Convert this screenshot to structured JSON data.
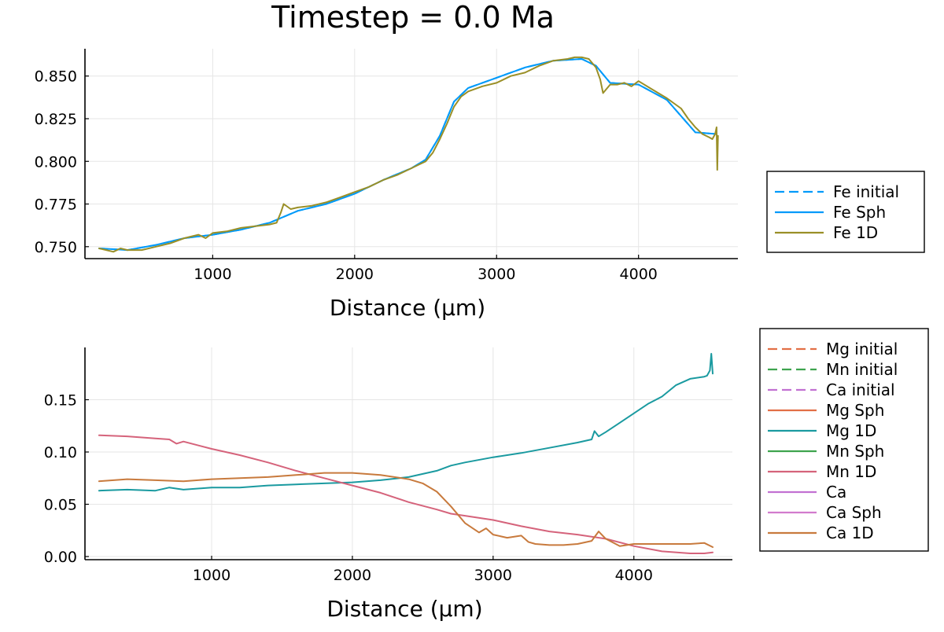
{
  "title": "Timestep = 0.0 Ma",
  "chart_data": [
    {
      "type": "line",
      "xlabel": "Distance (μm)",
      "ylabel": "",
      "xlim": [
        100,
        4700
      ],
      "ylim": [
        0.743,
        0.866
      ],
      "xticks": [
        1000,
        2000,
        3000,
        4000
      ],
      "xtick_labels": [
        "1000",
        "2000",
        "3000",
        "4000"
      ],
      "yticks": [
        0.75,
        0.775,
        0.8,
        0.825,
        0.85
      ],
      "ytick_labels": [
        "0.750",
        "0.775",
        "0.800",
        "0.825",
        "0.850"
      ],
      "grid": true,
      "legend_placement": "outside-right",
      "series": [
        {
          "name": "Fe initial",
          "color": "#009AFA",
          "dash": true,
          "x": [
            200,
            400,
            600,
            800,
            1000,
            1200,
            1400,
            1600,
            1800,
            2000,
            2200,
            2400,
            2500,
            2600,
            2700,
            2800,
            3000,
            3200,
            3400,
            3600,
            3700,
            3800,
            4000,
            4200,
            4400,
            4550
          ],
          "y": [
            0.749,
            0.748,
            0.751,
            0.755,
            0.757,
            0.76,
            0.764,
            0.771,
            0.775,
            0.781,
            0.789,
            0.796,
            0.801,
            0.815,
            0.835,
            0.843,
            0.849,
            0.855,
            0.859,
            0.86,
            0.856,
            0.846,
            0.845,
            0.836,
            0.817,
            0.816
          ]
        },
        {
          "name": "Fe Sph",
          "color": "#009AFA",
          "dash": false,
          "x": [
            200,
            400,
            600,
            800,
            1000,
            1200,
            1400,
            1600,
            1800,
            2000,
            2200,
            2400,
            2500,
            2600,
            2700,
            2800,
            3000,
            3200,
            3400,
            3600,
            3700,
            3800,
            4000,
            4200,
            4400,
            4550
          ],
          "y": [
            0.749,
            0.748,
            0.751,
            0.755,
            0.757,
            0.76,
            0.764,
            0.771,
            0.775,
            0.781,
            0.789,
            0.796,
            0.801,
            0.815,
            0.835,
            0.843,
            0.849,
            0.855,
            0.859,
            0.86,
            0.856,
            0.846,
            0.845,
            0.836,
            0.817,
            0.816
          ]
        },
        {
          "name": "Fe 1D",
          "color": "#9A8F27",
          "dash": false,
          "x": [
            200,
            250,
            300,
            350,
            400,
            500,
            600,
            700,
            800,
            900,
            950,
            1000,
            1100,
            1200,
            1300,
            1400,
            1450,
            1480,
            1500,
            1550,
            1600,
            1700,
            1800,
            1900,
            2000,
            2100,
            2200,
            2300,
            2400,
            2450,
            2500,
            2550,
            2600,
            2650,
            2700,
            2750,
            2800,
            2900,
            3000,
            3100,
            3200,
            3300,
            3400,
            3500,
            3550,
            3600,
            3650,
            3700,
            3730,
            3750,
            3800,
            3850,
            3900,
            3950,
            4000,
            4100,
            4200,
            4250,
            4300,
            4350,
            4400,
            4450,
            4500,
            4520,
            4540,
            4550,
            4555,
            4560
          ],
          "y": [
            0.749,
            0.748,
            0.747,
            0.749,
            0.748,
            0.748,
            0.75,
            0.752,
            0.755,
            0.757,
            0.755,
            0.758,
            0.759,
            0.761,
            0.762,
            0.763,
            0.764,
            0.77,
            0.775,
            0.772,
            0.773,
            0.774,
            0.776,
            0.779,
            0.782,
            0.785,
            0.789,
            0.792,
            0.796,
            0.798,
            0.8,
            0.805,
            0.813,
            0.822,
            0.832,
            0.838,
            0.841,
            0.844,
            0.846,
            0.85,
            0.852,
            0.856,
            0.859,
            0.86,
            0.861,
            0.861,
            0.86,
            0.855,
            0.848,
            0.84,
            0.845,
            0.845,
            0.846,
            0.844,
            0.847,
            0.842,
            0.837,
            0.834,
            0.831,
            0.825,
            0.82,
            0.816,
            0.814,
            0.813,
            0.816,
            0.82,
            0.795,
            0.815
          ]
        }
      ]
    },
    {
      "type": "line",
      "xlabel": "Distance (μm)",
      "ylabel": "",
      "xlim": [
        100,
        4700
      ],
      "ylim": [
        -0.003,
        0.2
      ],
      "xticks": [
        1000,
        2000,
        3000,
        4000
      ],
      "xtick_labels": [
        "1000",
        "2000",
        "3000",
        "4000"
      ],
      "yticks": [
        0.0,
        0.05,
        0.1,
        0.15
      ],
      "ytick_labels": [
        "0.00",
        "0.05",
        "0.10",
        "0.15"
      ],
      "grid": true,
      "legend_placement": "outside-right",
      "series": [
        {
          "name": "Mg initial",
          "color": "#E26F46",
          "dash": true,
          "x": [],
          "y": []
        },
        {
          "name": "Mn initial",
          "color": "#3EA44E",
          "dash": true,
          "x": [],
          "y": []
        },
        {
          "name": "Ca initial",
          "color": "#C271D2",
          "dash": true,
          "x": [],
          "y": []
        },
        {
          "name": "Mg Sph",
          "color": "#E26F46",
          "dash": false,
          "x": [],
          "y": []
        },
        {
          "name": "Mg 1D",
          "color": "#1A9AA0",
          "dash": false,
          "x": [
            200,
            400,
            600,
            700,
            800,
            1000,
            1200,
            1400,
            1600,
            1800,
            2000,
            2200,
            2400,
            2600,
            2700,
            2800,
            3000,
            3200,
            3400,
            3600,
            3700,
            3720,
            3750,
            3800,
            3900,
            4000,
            4100,
            4200,
            4300,
            4400,
            4500,
            4520,
            4540,
            4550,
            4560
          ],
          "y": [
            0.063,
            0.064,
            0.063,
            0.066,
            0.064,
            0.066,
            0.066,
            0.068,
            0.069,
            0.07,
            0.071,
            0.073,
            0.076,
            0.082,
            0.087,
            0.09,
            0.095,
            0.099,
            0.104,
            0.109,
            0.112,
            0.12,
            0.115,
            0.119,
            0.128,
            0.137,
            0.146,
            0.153,
            0.164,
            0.17,
            0.172,
            0.173,
            0.178,
            0.194,
            0.175
          ]
        },
        {
          "name": "Mn Sph",
          "color": "#3EA44E",
          "dash": false,
          "x": [],
          "y": []
        },
        {
          "name": "Mn 1D",
          "color": "#D5637B",
          "dash": false,
          "x": [
            200,
            400,
            600,
            700,
            750,
            800,
            1000,
            1200,
            1400,
            1600,
            1800,
            2000,
            2200,
            2400,
            2600,
            2700,
            2800,
            3000,
            3200,
            3400,
            3600,
            3800,
            4000,
            4200,
            4400,
            4500,
            4560
          ],
          "y": [
            0.116,
            0.115,
            0.113,
            0.112,
            0.108,
            0.11,
            0.103,
            0.097,
            0.09,
            0.082,
            0.075,
            0.068,
            0.061,
            0.052,
            0.045,
            0.041,
            0.039,
            0.035,
            0.029,
            0.024,
            0.021,
            0.017,
            0.01,
            0.005,
            0.003,
            0.003,
            0.004
          ]
        },
        {
          "name": "Ca",
          "color": "#C271D2",
          "dash": false,
          "x": [],
          "y": []
        },
        {
          "name": "Ca Sph",
          "color": "#D27BCD",
          "dash": false,
          "x": [],
          "y": []
        },
        {
          "name": "Ca 1D",
          "color": "#C87A3D",
          "dash": false,
          "x": [
            200,
            400,
            600,
            800,
            1000,
            1200,
            1400,
            1600,
            1800,
            2000,
            2200,
            2400,
            2500,
            2600,
            2700,
            2800,
            2900,
            2950,
            3000,
            3100,
            3200,
            3250,
            3300,
            3400,
            3500,
            3600,
            3700,
            3750,
            3800,
            3900,
            4000,
            4200,
            4400,
            4500,
            4560
          ],
          "y": [
            0.072,
            0.074,
            0.073,
            0.072,
            0.074,
            0.075,
            0.076,
            0.078,
            0.08,
            0.08,
            0.078,
            0.074,
            0.07,
            0.062,
            0.048,
            0.032,
            0.023,
            0.027,
            0.021,
            0.018,
            0.02,
            0.014,
            0.012,
            0.011,
            0.011,
            0.012,
            0.015,
            0.024,
            0.017,
            0.01,
            0.012,
            0.012,
            0.012,
            0.013,
            0.009
          ]
        }
      ]
    }
  ]
}
